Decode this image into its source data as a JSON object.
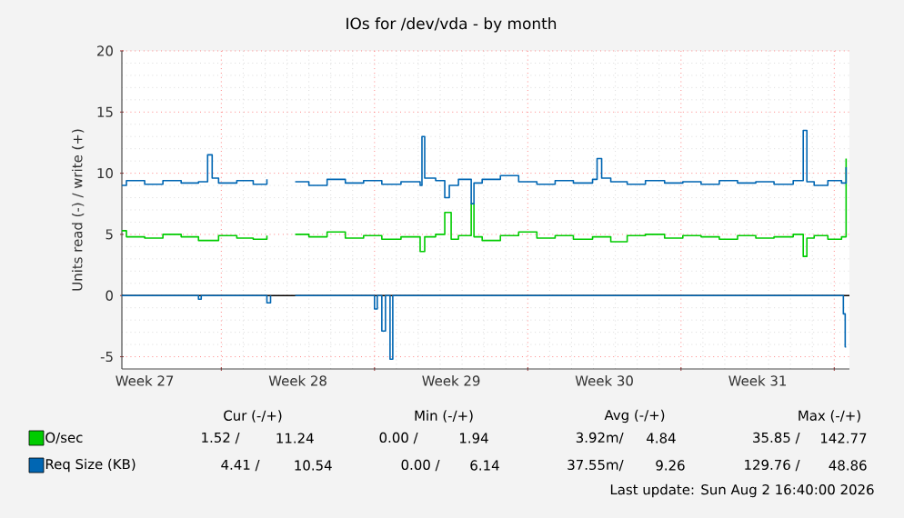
{
  "chart_data": {
    "type": "step",
    "title": "IOs for /dev/vda - by month",
    "ylabel": "Units read (-) / write (+)",
    "xlim": [
      "2026-06-30T11:00",
      "2026-08-02T16:40"
    ],
    "ylim": [
      -6,
      20
    ],
    "xticks": [
      {
        "value": "2026-07-01T12:00",
        "label": "Week 27"
      },
      {
        "value": "2026-07-08T12:00",
        "label": "Week 28"
      },
      {
        "value": "2026-07-15T12:00",
        "label": "Week 29"
      },
      {
        "value": "2026-07-22T12:00",
        "label": "Week 30"
      },
      {
        "value": "2026-07-29T12:00",
        "label": "Week 31"
      },
      {
        "value": "2026-07-05",
        "label": null
      },
      {
        "value": "2026-07-12",
        "label": null
      },
      {
        "value": "2026-07-19",
        "label": null
      },
      {
        "value": "2026-07-26",
        "label": null
      },
      {
        "value": "2026-08-02",
        "label": null
      }
    ],
    "yticks": [
      -5,
      0,
      5,
      10,
      15,
      20
    ],
    "grid": true,
    "legend": "bottom",
    "marker": "none",
    "line_style": "solid",
    "ref_lines": [
      {
        "axis": "y",
        "value": 0,
        "color": "#000000"
      }
    ],
    "series": [
      {
        "name": "O/sec",
        "color": "#00cc00",
        "x": [
          "2026-06-30T11:00",
          "2026-06-30T16:00",
          "2026-07-01T12:00",
          "2026-07-02T08:00",
          "2026-07-03T04:00",
          "2026-07-03T23:00",
          "2026-07-04T21:00",
          "2026-07-05T17:00",
          "2026-07-06T11:00",
          "2026-07-07T02:00",
          "2026-07-07T12:00",
          "2026-07-08T09:00",
          "2026-07-09T00:00",
          "2026-07-09T20:00",
          "2026-07-10T16:00",
          "2026-07-11T12:00",
          "2026-07-12T08:00",
          "2026-07-13T05:00",
          "2026-07-14T02:00",
          "2026-07-14T07:00",
          "2026-07-14T19:00",
          "2026-07-15T05:00",
          "2026-07-15T12:00",
          "2026-07-15T20:00",
          "2026-07-16T10:00",
          "2026-07-16T13:00",
          "2026-07-16T22:00",
          "2026-07-17T18:00",
          "2026-07-18T14:00",
          "2026-07-19T10:00",
          "2026-07-20T06:00",
          "2026-07-21T02:00",
          "2026-07-21T23:00",
          "2026-07-22T19:00",
          "2026-07-23T13:00",
          "2026-07-24T09:00",
          "2026-07-25T06:00",
          "2026-07-26T02:00",
          "2026-07-26T22:00",
          "2026-07-27T18:00",
          "2026-07-28T14:00",
          "2026-07-29T10:00",
          "2026-07-30T06:00",
          "2026-07-31T03:00",
          "2026-07-31T14:00",
          "2026-07-31T18:00",
          "2026-08-01T02:00",
          "2026-08-01T17:00",
          "2026-08-02T08:00",
          "2026-08-02T13:00"
        ],
        "values": [
          5.3,
          4.8,
          4.7,
          5.0,
          4.8,
          4.5,
          4.9,
          4.7,
          4.6,
          4.9,
          null,
          5.0,
          4.8,
          5.2,
          4.7,
          4.9,
          4.6,
          4.8,
          3.6,
          4.8,
          5.0,
          6.8,
          4.6,
          4.9,
          7.5,
          4.8,
          4.5,
          4.9,
          5.2,
          4.7,
          4.9,
          4.6,
          4.8,
          4.4,
          4.9,
          5.0,
          4.7,
          4.9,
          4.8,
          4.6,
          4.9,
          4.7,
          4.8,
          5.0,
          3.2,
          4.7,
          4.9,
          4.6,
          4.8,
          11.2
        ]
      },
      {
        "name": "Req Size (KB)",
        "color": "#0066b3",
        "x": [
          "2026-06-30T11:00",
          "2026-06-30T16:00",
          "2026-07-01T12:00",
          "2026-07-02T08:00",
          "2026-07-03T04:00",
          "2026-07-03T23:00",
          "2026-07-04T09:00",
          "2026-07-04T14:00",
          "2026-07-04T21:00",
          "2026-07-05T17:00",
          "2026-07-06T11:00",
          "2026-07-07T02:00",
          "2026-07-07T12:00",
          "2026-07-08T09:00",
          "2026-07-09T00:00",
          "2026-07-09T20:00",
          "2026-07-10T16:00",
          "2026-07-11T12:00",
          "2026-07-12T08:00",
          "2026-07-13T05:00",
          "2026-07-14T02:00",
          "2026-07-14T04:00",
          "2026-07-14T07:00",
          "2026-07-14T19:00",
          "2026-07-15T05:00",
          "2026-07-15T10:00",
          "2026-07-15T20:00",
          "2026-07-16T10:00",
          "2026-07-16T13:00",
          "2026-07-16T22:00",
          "2026-07-17T18:00",
          "2026-07-18T14:00",
          "2026-07-19T10:00",
          "2026-07-20T06:00",
          "2026-07-21T02:00",
          "2026-07-21T23:00",
          "2026-07-22T04:00",
          "2026-07-22T09:00",
          "2026-07-22T19:00",
          "2026-07-23T13:00",
          "2026-07-24T09:00",
          "2026-07-25T06:00",
          "2026-07-26T02:00",
          "2026-07-26T22:00",
          "2026-07-27T18:00",
          "2026-07-28T14:00",
          "2026-07-29T10:00",
          "2026-07-30T06:00",
          "2026-07-31T03:00",
          "2026-07-31T14:00",
          "2026-07-31T18:00",
          "2026-08-01T02:00",
          "2026-08-01T17:00",
          "2026-08-02T08:00",
          "2026-08-02T13:00"
        ],
        "values": [
          9.0,
          9.4,
          9.1,
          9.4,
          9.2,
          9.3,
          11.5,
          9.6,
          9.2,
          9.4,
          9.1,
          9.5,
          null,
          9.3,
          9.0,
          9.5,
          9.2,
          9.4,
          9.1,
          9.3,
          9.0,
          13.0,
          9.6,
          9.4,
          8.0,
          9.0,
          9.5,
          7.5,
          9.2,
          9.5,
          9.8,
          9.3,
          9.1,
          9.4,
          9.2,
          9.5,
          11.2,
          9.6,
          9.3,
          9.1,
          9.4,
          9.2,
          9.3,
          9.1,
          9.4,
          9.2,
          9.3,
          9.1,
          9.4,
          13.5,
          9.3,
          9.0,
          9.4,
          9.2,
          10.5
        ]
      },
      {
        "color": "#0066b3",
        "x": [
          "2026-06-30T11:00",
          "2026-07-03T23:00",
          "2026-07-04T02:00",
          "2026-07-07T02:00",
          "2026-07-07T06:00",
          "2026-07-07T12:00",
          "2026-07-08T09:00",
          "2026-07-12T00:00",
          "2026-07-12T03:00",
          "2026-07-12T08:00",
          "2026-07-12T12:00",
          "2026-07-12T17:00",
          "2026-07-12T20:00",
          "2026-08-02T10:00",
          "2026-08-02T12:00",
          "2026-08-02T13:00"
        ],
        "values": [
          0,
          -0.3,
          0,
          -0.6,
          0,
          null,
          0,
          -1.1,
          0,
          -2.9,
          0,
          -5.2,
          0,
          -1.5,
          -4.2,
          -4.2
        ]
      }
    ],
    "annotations": [
      "Cur (-/+)",
      "Min (-/+)",
      "Avg (-/+)",
      "Max (-/+)",
      "1.52 /",
      "11.24",
      "0.00 /",
      "1.94",
      "3.92m/",
      "4.84",
      "35.85 /",
      "142.77",
      "4.41 /",
      "10.54",
      "0.00 /",
      "6.14",
      "37.55m/",
      "9.26",
      "129.76 /",
      "48.86",
      "Last update: Sun Aug  2 16:40:00 2026"
    ]
  }
}
